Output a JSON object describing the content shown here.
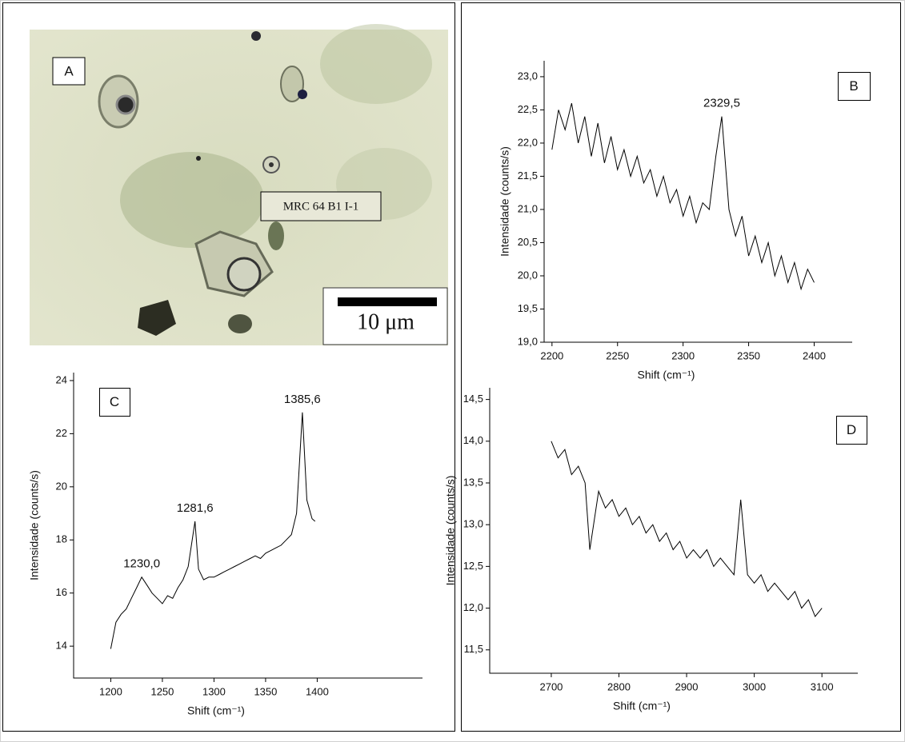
{
  "photo": {
    "label": "A",
    "sample": "MRC 64 B1 I-1",
    "scale": "10 μm"
  },
  "chart_data": [
    {
      "type": "line",
      "panel_label": "B",
      "xlabel": "Shift (cm⁻¹)",
      "ylabel": "Intensidade (counts/s)",
      "color": "#000000",
      "x": [
        2200,
        2205,
        2210,
        2215,
        2220,
        2225,
        2230,
        2235,
        2240,
        2245,
        2250,
        2255,
        2260,
        2265,
        2270,
        2275,
        2280,
        2285,
        2290,
        2295,
        2300,
        2305,
        2310,
        2315,
        2320,
        2325,
        2329.5,
        2335,
        2340,
        2345,
        2350,
        2355,
        2360,
        2365,
        2370,
        2375,
        2380,
        2385,
        2390,
        2395,
        2400
      ],
      "values": [
        21.9,
        22.5,
        22.2,
        22.6,
        22.0,
        22.4,
        21.8,
        22.3,
        21.7,
        22.1,
        21.6,
        21.9,
        21.5,
        21.8,
        21.4,
        21.6,
        21.2,
        21.5,
        21.1,
        21.3,
        20.9,
        21.2,
        20.8,
        21.1,
        21.0,
        21.8,
        22.4,
        21.0,
        20.6,
        20.9,
        20.3,
        20.6,
        20.2,
        20.5,
        20.0,
        20.3,
        19.9,
        20.2,
        19.8,
        20.1,
        19.9
      ],
      "xlim": [
        2194,
        2429
      ],
      "ylim": [
        19.0,
        23.24
      ],
      "xticks": [
        2200,
        2250,
        2300,
        2350,
        2400
      ],
      "yticks": [
        {
          "value": 19.0,
          "label": "19,0"
        },
        {
          "value": 19.5,
          "label": "19,5"
        },
        {
          "value": 20.0,
          "label": "20,0"
        },
        {
          "value": 20.5,
          "label": "20,5"
        },
        {
          "value": 21.0,
          "label": "21,0"
        },
        {
          "value": 21.5,
          "label": "21,5"
        },
        {
          "value": 22.0,
          "label": "22,0"
        },
        {
          "value": 22.5,
          "label": "22,5"
        },
        {
          "value": 23.0,
          "label": "23,0"
        }
      ],
      "annotations": [
        {
          "text": "2329,5",
          "x": 2329.5,
          "y": 22.4
        }
      ]
    },
    {
      "type": "line",
      "panel_label": "C",
      "xlabel": "Shift (cm⁻¹)",
      "ylabel": "Intensidade (counts/s)",
      "color": "#000000",
      "x": [
        1200,
        1205,
        1210,
        1215,
        1220,
        1225,
        1230,
        1235,
        1240,
        1245,
        1250,
        1255,
        1260,
        1265,
        1270,
        1275,
        1281.6,
        1285,
        1290,
        1295,
        1300,
        1305,
        1310,
        1315,
        1320,
        1325,
        1330,
        1335,
        1340,
        1345,
        1350,
        1355,
        1360,
        1365,
        1370,
        1375,
        1380,
        1385.6,
        1390,
        1395,
        1398
      ],
      "values": [
        13.9,
        14.9,
        15.2,
        15.4,
        15.8,
        16.2,
        16.6,
        16.3,
        16.0,
        15.8,
        15.6,
        15.9,
        15.8,
        16.2,
        16.5,
        17.0,
        18.7,
        16.9,
        16.5,
        16.6,
        16.6,
        16.7,
        16.8,
        16.9,
        17.0,
        17.1,
        17.2,
        17.3,
        17.4,
        17.3,
        17.5,
        17.6,
        17.7,
        17.8,
        18.0,
        18.2,
        19.0,
        22.8,
        19.5,
        18.8,
        18.7
      ],
      "xlim": [
        1164,
        1502
      ],
      "ylim": [
        12.8,
        24.3
      ],
      "xticks": [
        1200,
        1250,
        1300,
        1350,
        1400
      ],
      "yticks": [
        14,
        16,
        18,
        20,
        22,
        24
      ],
      "annotations": [
        {
          "text": "1230,0",
          "x": 1230,
          "y": 16.6
        },
        {
          "text": "1281,6",
          "x": 1281.6,
          "y": 18.7
        },
        {
          "text": "1385,6",
          "x": 1385.6,
          "y": 22.8
        }
      ]
    },
    {
      "type": "line",
      "panel_label": "D",
      "xlabel": "Shift (cm⁻¹)",
      "ylabel": "Intensidade (counts/s)",
      "color": "#000000",
      "x": [
        2700,
        2710,
        2720,
        2730,
        2740,
        2750,
        2757,
        2770,
        2780,
        2790,
        2800,
        2810,
        2820,
        2830,
        2840,
        2850,
        2860,
        2870,
        2880,
        2890,
        2900,
        2910,
        2920,
        2930,
        2940,
        2950,
        2960,
        2970,
        2980,
        2990,
        3000,
        3010,
        3020,
        3030,
        3040,
        3050,
        3060,
        3070,
        3080,
        3090,
        3100
      ],
      "values": [
        14.0,
        13.8,
        13.9,
        13.6,
        13.7,
        13.5,
        12.7,
        13.4,
        13.2,
        13.3,
        13.1,
        13.2,
        13.0,
        13.1,
        12.9,
        13.0,
        12.8,
        12.9,
        12.7,
        12.8,
        12.6,
        12.7,
        12.6,
        12.7,
        12.5,
        12.6,
        12.5,
        12.4,
        13.3,
        12.4,
        12.3,
        12.4,
        12.2,
        12.3,
        12.2,
        12.1,
        12.2,
        12.0,
        12.1,
        11.9,
        12.0
      ],
      "xlim": [
        2609,
        3153
      ],
      "ylim": [
        11.22,
        14.64
      ],
      "xticks": [
        2700,
        2800,
        2900,
        3000,
        3100
      ],
      "yticks": [
        {
          "value": 11.5,
          "label": "11,5"
        },
        {
          "value": 12.0,
          "label": "12,0"
        },
        {
          "value": 12.5,
          "label": "12,5"
        },
        {
          "value": 13.0,
          "label": "13,0"
        },
        {
          "value": 13.5,
          "label": "13,5"
        },
        {
          "value": 14.0,
          "label": "14,0"
        },
        {
          "value": 14.5,
          "label": "14,5"
        }
      ],
      "annotations": []
    }
  ]
}
